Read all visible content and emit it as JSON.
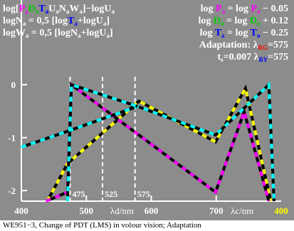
{
  "chart_data": {
    "type": "line",
    "header_left": [
      [
        [
          "log[",
          "#ffffff",
          0
        ],
        [
          "P",
          "#ff00ff",
          0
        ],
        [
          "a",
          "#ff00ff",
          1
        ],
        [
          "D",
          "#00cc00",
          0
        ],
        [
          "a",
          "#00cc00",
          1
        ],
        [
          "T",
          "#0000ff",
          0
        ],
        [
          "a",
          "#0000ff",
          1
        ],
        [
          "U",
          "#ffffff",
          0
        ],
        [
          "a",
          "#ffffff",
          1
        ],
        [
          "N",
          "#ffffff",
          0
        ],
        [
          "a",
          "#ffffff",
          1
        ],
        [
          "W",
          "#ffffff",
          0
        ],
        [
          "a",
          "#ffffff",
          1
        ],
        [
          "]−log",
          "#ffffff",
          0
        ],
        [
          "U",
          "#ffffff",
          0
        ],
        [
          "a",
          "#ffffff",
          1
        ]
      ],
      [
        [
          "logN",
          "#ffffff",
          0
        ],
        [
          "a",
          "#ffffff",
          1
        ],
        [
          " = 0,5 [log",
          "#ffffff",
          0
        ],
        [
          "T",
          "#0000ff",
          0
        ],
        [
          "a",
          "#0000ff",
          1
        ],
        [
          "+logU",
          "#ffffff",
          0
        ],
        [
          "a",
          "#ffffff",
          1
        ],
        [
          "]",
          "#ffffff",
          0
        ]
      ],
      [
        [
          "logW",
          "#ffffff",
          0
        ],
        [
          "a",
          "#ffffff",
          1
        ],
        [
          " = 0,5 [logN",
          "#ffffff",
          0
        ],
        [
          "a",
          "#ffffff",
          1
        ],
        [
          "+logU",
          "#ffffff",
          0
        ],
        [
          "a",
          "#ffffff",
          1
        ],
        [
          "]",
          "#ffffff",
          0
        ]
      ]
    ],
    "header_right": [
      [
        [
          "log ",
          "#ffffff",
          0
        ],
        [
          "P",
          "#ff00ff",
          0
        ],
        [
          "a",
          "#ff00ff",
          1
        ],
        [
          " = log ",
          "#ffffff",
          0
        ],
        [
          "P",
          "#ff00ff",
          0
        ],
        [
          "o",
          "#ff00ff",
          1
        ],
        [
          " − 0.05",
          "#ffffff",
          0
        ]
      ],
      [
        [
          "log ",
          "#ffffff",
          0
        ],
        [
          "D",
          "#00cc00",
          0
        ],
        [
          "o",
          "#00cc00",
          1
        ],
        [
          " = log ",
          "#ffffff",
          0
        ],
        [
          "D",
          "#00cc00",
          0
        ],
        [
          "o",
          "#00cc00",
          1
        ],
        [
          " + 0.12",
          "#ffffff",
          0
        ]
      ],
      [
        [
          "log ",
          "#ffffff",
          0
        ],
        [
          "T",
          "#0000ff",
          0
        ],
        [
          "a",
          "#0000ff",
          1
        ],
        [
          " = log ",
          "#ffffff",
          0
        ],
        [
          "T",
          "#0000ff",
          0
        ],
        [
          "o",
          "#0000ff",
          1
        ],
        [
          " − 0.25",
          "#ffffff",
          0
        ]
      ],
      [
        [
          "Adaptation: λ",
          "#ffffff",
          0
        ],
        [
          "RG",
          "#ff0000",
          1
        ],
        [
          "=575",
          "#ffffff",
          0
        ]
      ],
      [
        [
          "t",
          "#ffffff",
          0
        ],
        [
          "s",
          "#ffffff",
          1
        ],
        [
          "=0.007  λ",
          "#ffffff",
          0
        ],
        [
          "BY",
          "#0000ff",
          1
        ],
        [
          "=575",
          "#ffffff",
          0
        ]
      ]
    ],
    "caption": "WE951−3, Change of PDT (LMS) in volour vision; Adaptation",
    "xlim": [
      400,
      800
    ],
    "ylim": [
      -2.2,
      1.6
    ],
    "xticks": [
      400,
      500,
      600,
      700
    ],
    "yticks": [
      0,
      -1,
      -2
    ],
    "xtick_extra": "400",
    "xlabel_d": "λd/nm",
    "xlabel_c": "λc/nm",
    "markers": [
      {
        "x": 475,
        "label": "475"
      },
      {
        "x": 525,
        "label": "525"
      },
      {
        "x": 575,
        "label": "575"
      }
    ],
    "series": [
      {
        "color": "#ffff00",
        "x": [
          440,
          471,
          581,
          699,
          745,
          784
        ],
        "values": [
          -2.2,
          -1.49,
          -0.31,
          -1.08,
          -0.07,
          -2.2
        ]
      },
      {
        "color": "#ff00ff",
        "x": [
          438,
          471,
          477,
          699,
          743,
          781
        ],
        "values": [
          -2.2,
          -2.03,
          0,
          -2.03,
          -0.51,
          -2.2
        ]
      },
      {
        "color": "#00ffff",
        "x": [
          400,
          471,
          579,
          699,
          781,
          789
        ],
        "values": [
          -1.18,
          -0.88,
          -0.41,
          -0.95,
          0,
          -2.2
        ]
      },
      {
        "color": "#00ffff",
        "x": [
          471,
          477,
          579
        ],
        "values": [
          -2.2,
          0,
          -0.41
        ]
      }
    ]
  }
}
